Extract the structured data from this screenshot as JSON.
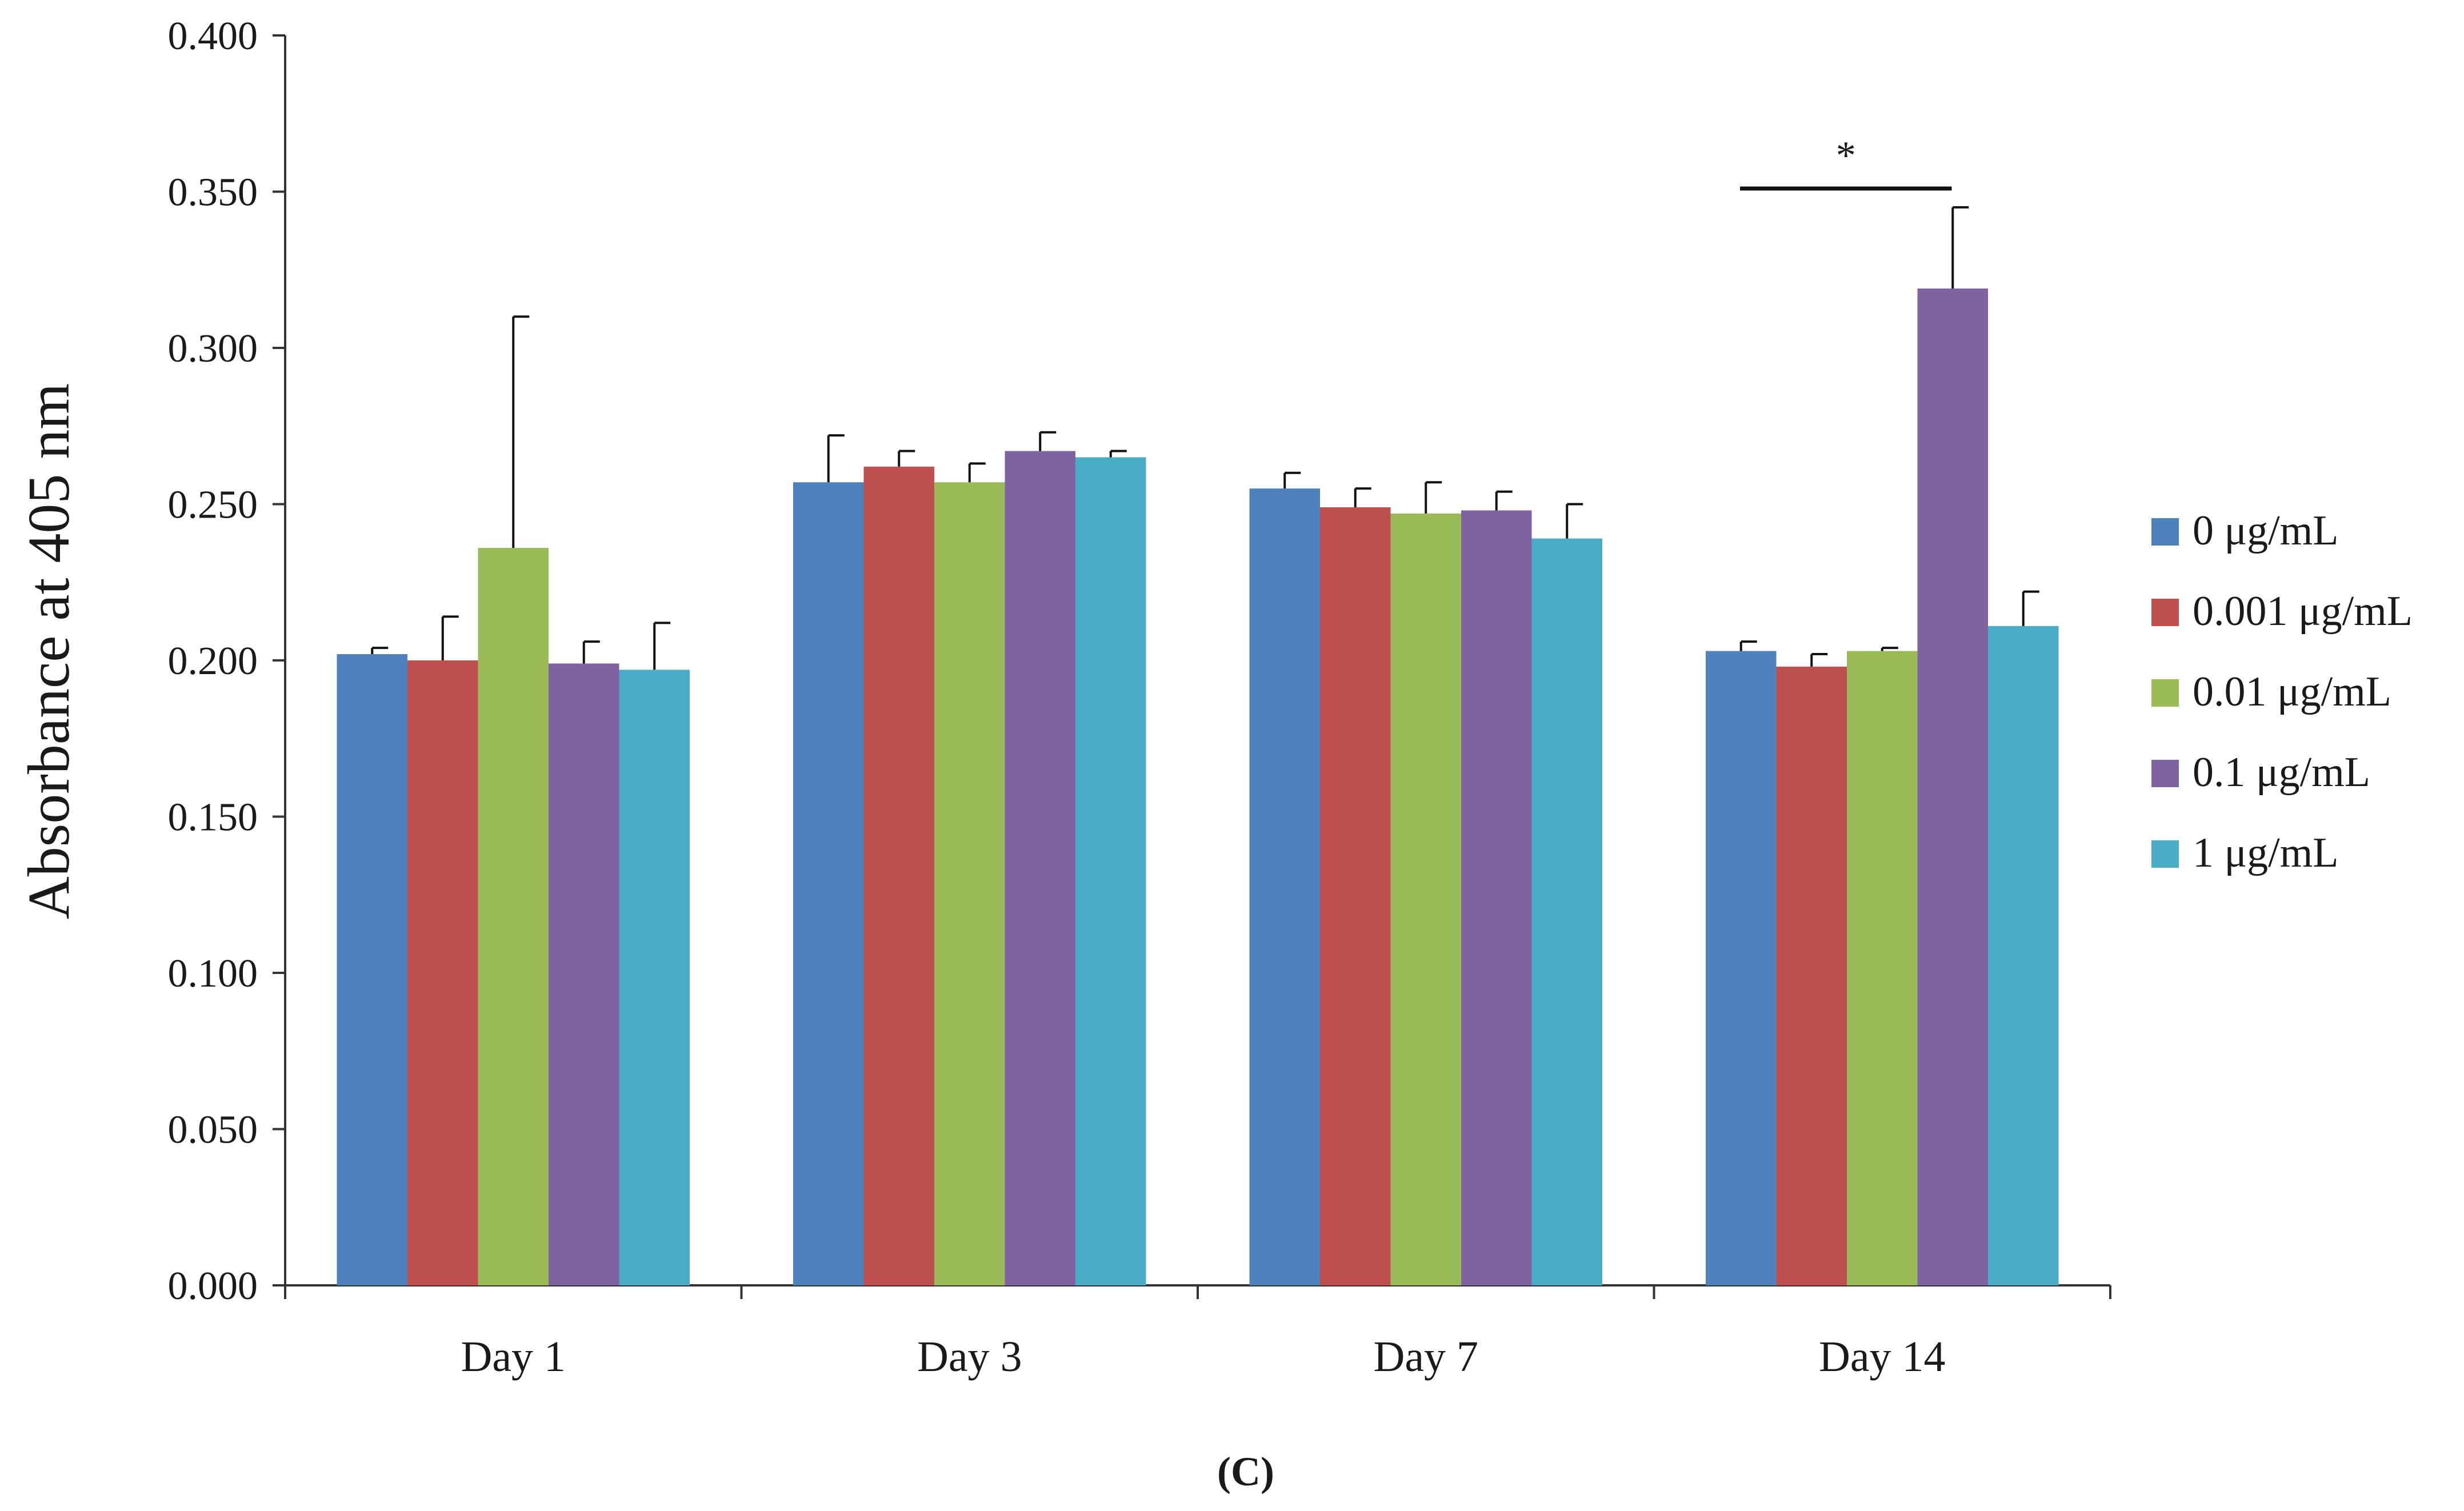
{
  "chart_data": {
    "type": "bar",
    "title": "",
    "xlabel": "",
    "ylabel": "Absorbance at 405 nm",
    "ylim": [
      0,
      0.4
    ],
    "yticks": [
      "0.000",
      "0.050",
      "0.100",
      "0.150",
      "0.200",
      "0.250",
      "0.300",
      "0.350",
      "0.400"
    ],
    "categories": [
      "Day 1",
      "Day 3",
      "Day 7",
      "Day 14"
    ],
    "legend_position": "right",
    "series": [
      {
        "name": "0 μg/mL",
        "color": "#4F81BD",
        "values": [
          0.202,
          0.257,
          0.255,
          0.203
        ],
        "errors": [
          0.002,
          0.015,
          0.005,
          0.003
        ]
      },
      {
        "name": "0.001 μg/mL",
        "color": "#C0504D",
        "values": [
          0.2,
          0.262,
          0.249,
          0.198
        ],
        "errors": [
          0.014,
          0.005,
          0.006,
          0.004
        ]
      },
      {
        "name": "0.01 μg/mL",
        "color": "#9BBB59",
        "values": [
          0.236,
          0.257,
          0.247,
          0.203
        ],
        "errors": [
          0.074,
          0.006,
          0.01,
          0.001
        ]
      },
      {
        "name": "0.1 μg/mL",
        "color": "#8064A2",
        "values": [
          0.199,
          0.267,
          0.248,
          0.319
        ],
        "errors": [
          0.007,
          0.006,
          0.006,
          0.026
        ]
      },
      {
        "name": "1 μg/mL",
        "color": "#4BACC6",
        "values": [
          0.197,
          0.265,
          0.239,
          0.211
        ],
        "errors": [
          0.015,
          0.002,
          0.011,
          0.011
        ]
      }
    ],
    "annotations": [
      {
        "text": "*",
        "category": "Day 14",
        "from_series": 0,
        "to_series": 3,
        "y": 0.351
      }
    ]
  },
  "panel_label": "(C)"
}
